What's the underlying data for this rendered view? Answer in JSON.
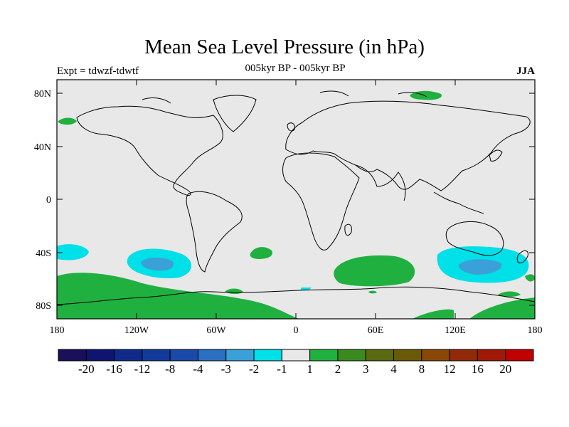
{
  "title": "Mean Sea Level Pressure (in hPa)",
  "subtitle_left": "Expt = tdwzf-tdwtf",
  "subtitle_center": "005kyr BP - 005kyr BP",
  "subtitle_right": "JJA",
  "axes": {
    "lat_ticks": [
      "80N",
      "40N",
      "0",
      "40S",
      "80S"
    ],
    "lon_ticks": [
      "180",
      "120W",
      "60W",
      "0",
      "60E",
      "120E",
      "180"
    ]
  },
  "colorbar": {
    "colors": [
      "#1a0f5a",
      "#0f1470",
      "#102a8a",
      "#123a9a",
      "#1a4aa8",
      "#2a70c0",
      "#3aa0d8",
      "#00e0e8",
      "#e8e8e8",
      "#20b040",
      "#3a8a20",
      "#5a6a10",
      "#6a5a08",
      "#8a4808",
      "#902a08",
      "#a01808",
      "#c00000"
    ],
    "labels": [
      "-20",
      "-16",
      "-12",
      "-8",
      "-4",
      "-3",
      "-2",
      "-1",
      "1",
      "2",
      "3",
      "4",
      "8",
      "12",
      "16",
      "20"
    ]
  },
  "palette": {
    "background": "#e8e8e8",
    "neg1": "#00e0e8",
    "neg2": "#3aa0d8",
    "pos1": "#20b040"
  }
}
